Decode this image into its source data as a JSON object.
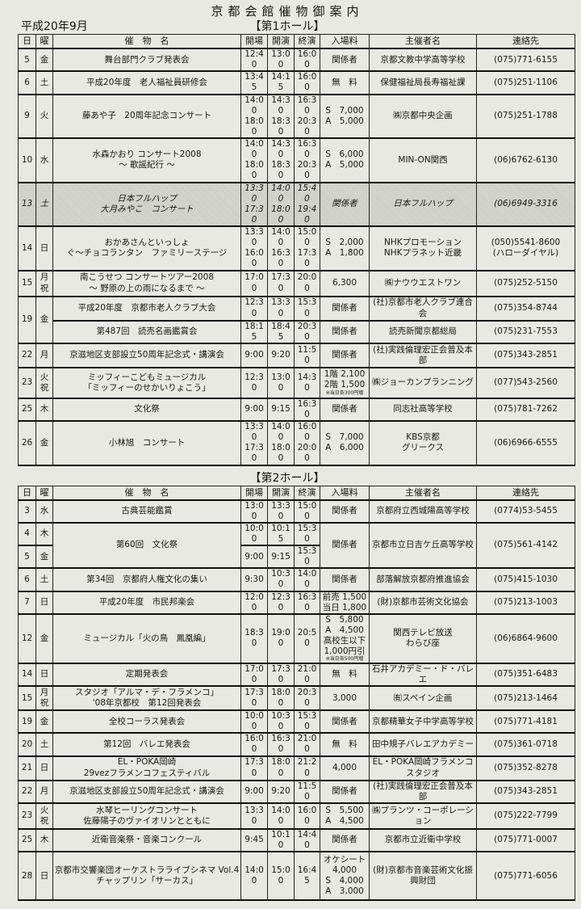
{
  "title": "京都会館催物御案内",
  "date": "平成20年9月",
  "columns": [
    "日",
    "曜",
    "催　物　名",
    "開場",
    "開演",
    "終演",
    "入場料",
    "主催者名",
    "連絡先"
  ],
  "halls": [
    {
      "label": "【第1ホール】",
      "rows": [
        {
          "day": "5",
          "dow": [
            "金"
          ],
          "name": [
            "舞台部門クラブ発表会"
          ],
          "open": [
            "12:40"
          ],
          "start": [
            "13:00"
          ],
          "end": [
            "16:00"
          ],
          "fee": [
            "関係者"
          ],
          "org": [
            "京都文教中学高等学校"
          ],
          "contact": [
            "(075)771-6155"
          ]
        },
        {
          "day": "6",
          "dow": [
            "土"
          ],
          "name": [
            "平成20年度　老人福祉員研修会"
          ],
          "open": [
            "13:45"
          ],
          "start": [
            "14:15"
          ],
          "end": [
            "16:00"
          ],
          "fee": [
            "無　料"
          ],
          "org": [
            "保健福祉局長寿福祉課"
          ],
          "contact": [
            "(075)251-1106"
          ]
        },
        {
          "day": "9",
          "dow": [
            "火"
          ],
          "name": [
            "藤あや子　20周年記念コンサート"
          ],
          "open": [
            "14:00",
            "18:00"
          ],
          "start": [
            "14:30",
            "18:30"
          ],
          "end": [
            "16:30",
            "20:30"
          ],
          "fee": [
            "S　7,000",
            "A　5,000"
          ],
          "org": [
            "㈱京都中央企画"
          ],
          "contact": [
            "(075)251-1788"
          ]
        },
        {
          "day": "10",
          "dow": [
            "水"
          ],
          "name": [
            "水森かおり コンサート2008",
            "～ 歌謡紀行 ～"
          ],
          "open": [
            "14:00",
            "18:00"
          ],
          "start": [
            "14:30",
            "18:30"
          ],
          "end": [
            "16:30",
            "20:30"
          ],
          "fee": [
            "S　6,000",
            "A　5,000"
          ],
          "org": [
            "MIN-ON関西"
          ],
          "contact": [
            "(06)6762-6130"
          ]
        },
        {
          "day": "13",
          "dow": [
            "土"
          ],
          "shaded": true,
          "name": [
            "日本フルハップ",
            "大月みやこ　コンサート"
          ],
          "open": [
            "13:30",
            "17:30"
          ],
          "start": [
            "14:00",
            "18:00"
          ],
          "end": [
            "15:40",
            "19:40"
          ],
          "fee": [
            "関係者"
          ],
          "org": [
            "日本フルハップ"
          ],
          "contact": [
            "(06)6949-3316"
          ]
        },
        {
          "day": "14",
          "dow": [
            "日"
          ],
          "name": [
            "おかあさんといっしょ",
            "ぐ～チョコランタン　ファミリーステージ"
          ],
          "open": [
            "13:30",
            "16:00"
          ],
          "start": [
            "14:00",
            "16:30"
          ],
          "end": [
            "15:00",
            "17:30"
          ],
          "fee": [
            "S　2,000",
            "A　1,800"
          ],
          "org": [
            "NHKプロモーション",
            "NHKプラネット近畿"
          ],
          "contact": [
            "(050)5541-8600",
            "(ハローダイヤル)"
          ]
        },
        {
          "day": "15",
          "dow": [
            "月",
            "祝"
          ],
          "name": [
            "南こうせつ コンサートツアー2008",
            "～ 野原の上の雨になるまで ～"
          ],
          "open": [
            "17:00"
          ],
          "start": [
            "17:30"
          ],
          "end": [
            "20:00"
          ],
          "fee": [
            "6,300"
          ],
          "org": [
            "㈱ナウウエストワン"
          ],
          "contact": [
            "(075)252-5150"
          ]
        },
        {
          "day": "19",
          "dow": [
            "金"
          ],
          "span2": [
            "day",
            "dow"
          ],
          "name": [
            "平成20年度　京都市老人クラブ大会"
          ],
          "open": [
            "12:30"
          ],
          "start": [
            "13:30"
          ],
          "end": [
            "15:30"
          ],
          "fee": [
            "関係者"
          ],
          "org": [
            "(社)京都市老人クラブ連合会"
          ],
          "contact": [
            "(075)354-8744"
          ]
        },
        {
          "name": [
            "第487回　読売名画鑑賞会"
          ],
          "open": [
            "18:15"
          ],
          "start": [
            "18:45"
          ],
          "end": [
            "20:30"
          ],
          "fee": [
            "関係者"
          ],
          "org": [
            "読売新聞京都総局"
          ],
          "contact": [
            "(075)231-7553"
          ]
        },
        {
          "day": "22",
          "dow": [
            "月"
          ],
          "name": [
            "京滋地区支部設立50周年記念式・講演会"
          ],
          "open": [
            "9:00"
          ],
          "start": [
            "9:20"
          ],
          "end": [
            "11:50"
          ],
          "fee": [
            "関係者"
          ],
          "org": [
            "(社)実践倫理宏正会普及本部"
          ],
          "contact": [
            "(075)343-2851"
          ]
        },
        {
          "day": "23",
          "dow": [
            "火",
            "祝"
          ],
          "name": [
            "ミッフィーこどもミュージカル",
            "「ミッフィーのせかいりょこう」"
          ],
          "open": [
            "12:30"
          ],
          "start": [
            "13:00"
          ],
          "end": [
            "14:30"
          ],
          "fee": [
            "1階 2,100",
            "2階 1,500"
          ],
          "fee_note": "※当日各300円増",
          "org": [
            "㈱ジョーカンプランニング"
          ],
          "contact": [
            "(077)543-2560"
          ]
        },
        {
          "day": "25",
          "dow": [
            "木"
          ],
          "name": [
            "文化祭"
          ],
          "open": [
            "9:00"
          ],
          "start": [
            "9:15"
          ],
          "end": [
            "16:30"
          ],
          "fee": [
            "関係者"
          ],
          "org": [
            "同志社高等学校"
          ],
          "contact": [
            "(075)781-7262"
          ]
        },
        {
          "day": "26",
          "dow": [
            "金"
          ],
          "name": [
            "小林旭　コンサート"
          ],
          "open": [
            "13:30",
            "17:30"
          ],
          "start": [
            "14:00",
            "18:00"
          ],
          "end": [
            "16:00",
            "20:00"
          ],
          "fee": [
            "S　7,000",
            "A　6,000"
          ],
          "org": [
            "KBS京都",
            "グリークス"
          ],
          "contact": [
            "(06)6966-6555"
          ]
        }
      ]
    },
    {
      "label": "【第2ホール】",
      "rows": [
        {
          "day": "3",
          "dow": [
            "水"
          ],
          "name": [
            "古典芸能鑑賞"
          ],
          "open": [
            "13:00"
          ],
          "start": [
            "13:30"
          ],
          "end": [
            "15:00"
          ],
          "fee": [
            "関係者"
          ],
          "org": [
            "京都府立西城陽高等学校"
          ],
          "contact": [
            "(0774)53-5455"
          ]
        },
        {
          "day": "4",
          "dow": [
            "木"
          ],
          "span2": [
            "name",
            "fee",
            "org",
            "contact"
          ],
          "name": [
            "第60回　文化祭"
          ],
          "open": [
            "10:00"
          ],
          "start": [
            "10:15"
          ],
          "end": [
            "15:30"
          ],
          "fee": [
            "関係者"
          ],
          "org": [
            "京都市立日吉ケ丘高等学校"
          ],
          "contact": [
            "(075)561-4142"
          ]
        },
        {
          "day": "5",
          "dow": [
            "金"
          ],
          "open": [
            "9:00"
          ],
          "start": [
            "9:15"
          ],
          "end": [
            "15:30"
          ]
        },
        {
          "day": "6",
          "dow": [
            "土"
          ],
          "name": [
            "第34回　京都府人権文化の集い"
          ],
          "open": [
            "9:30"
          ],
          "start": [
            "10:30"
          ],
          "end": [
            "14:00"
          ],
          "fee": [
            "関係者"
          ],
          "org": [
            "部落解放京都府推進協会"
          ],
          "contact": [
            "(075)415-1030"
          ]
        },
        {
          "day": "7",
          "dow": [
            "日"
          ],
          "name": [
            "平成20年度　市民邦楽会"
          ],
          "open": [
            "12:00"
          ],
          "start": [
            "12:30"
          ],
          "end": [
            "16:30"
          ],
          "fee": [
            "前売 1,500",
            "当日 1,800"
          ],
          "org": [
            "(財)京都市芸術文化協会"
          ],
          "contact": [
            "(075)213-1003"
          ]
        },
        {
          "day": "12",
          "dow": [
            "金"
          ],
          "name": [
            "ミュージカル「火の鳥　鳳凰編」"
          ],
          "open": [
            "18:30"
          ],
          "start": [
            "19:00"
          ],
          "end": [
            "20:50"
          ],
          "fee": [
            "S　5,800",
            "A　4,500",
            "高校生以下",
            "1,000円引"
          ],
          "fee_note": "※当日各500円増",
          "org": [
            "関西テレビ放送",
            "わらび座"
          ],
          "contact": [
            "(06)6864-9600"
          ]
        },
        {
          "day": "14",
          "dow": [
            "日"
          ],
          "name": [
            "定期発表会"
          ],
          "open": [
            "17:00"
          ],
          "start": [
            "17:30"
          ],
          "end": [
            "21:00"
          ],
          "fee": [
            "無　料"
          ],
          "org": [
            "石井アカデミー・ド・バレエ"
          ],
          "contact": [
            "(075)351-6483"
          ]
        },
        {
          "day": "15",
          "dow": [
            "月",
            "祝"
          ],
          "name": [
            "スタジオ「アルマ・デ・フラメンコ」",
            "'08年京都校　第12回発表会"
          ],
          "open": [
            "17:30"
          ],
          "start": [
            "18:00"
          ],
          "end": [
            "20:30"
          ],
          "fee": [
            "3,000"
          ],
          "org": [
            "㈲スペイン企画"
          ],
          "contact": [
            "(075)213-1464"
          ]
        },
        {
          "day": "19",
          "dow": [
            "金"
          ],
          "name": [
            "全校コーラス発表会"
          ],
          "open": [
            "10:00"
          ],
          "start": [
            "10:30"
          ],
          "end": [
            "15:30"
          ],
          "fee": [
            "関係者"
          ],
          "org": [
            "京都精華女子中学高等学校"
          ],
          "contact": [
            "(075)771-4181"
          ]
        },
        {
          "day": "20",
          "dow": [
            "土"
          ],
          "name": [
            "第12回　バレエ発表会"
          ],
          "open": [
            "16:00"
          ],
          "start": [
            "16:30"
          ],
          "end": [
            "21:00"
          ],
          "fee": [
            "無　料"
          ],
          "org": [
            "田中規子バレエアカデミー"
          ],
          "contact": [
            "(075)361-0718"
          ]
        },
        {
          "day": "21",
          "dow": [
            "日"
          ],
          "name": [
            "EL・POKA岡崎",
            "29vezフラメンコフェスティバル"
          ],
          "open": [
            "17:30"
          ],
          "start": [
            "18:00"
          ],
          "end": [
            "21:20"
          ],
          "fee": [
            "4,000"
          ],
          "org": [
            "EL・POKA岡崎フラメンコスタジオ"
          ],
          "contact": [
            "(075)352-8278"
          ]
        },
        {
          "day": "22",
          "dow": [
            "月"
          ],
          "name": [
            "京滋地区支部設立50周年記念式・講演会"
          ],
          "open": [
            "9:00"
          ],
          "start": [
            "9:20"
          ],
          "end": [
            "11:50"
          ],
          "fee": [
            "関係者"
          ],
          "org": [
            "(社)実践倫理宏正会普及本部"
          ],
          "contact": [
            "(075)343-2851"
          ]
        },
        {
          "day": "23",
          "dow": [
            "火",
            "祝"
          ],
          "name": [
            "水琴ヒーリングコンサート",
            "佐藤陽子のヴァイオリンとともに"
          ],
          "open": [
            "13:30"
          ],
          "start": [
            "14:00"
          ],
          "end": [
            "16:00"
          ],
          "fee": [
            "S　5,500",
            "A　4,500"
          ],
          "org": [
            "㈱プランツ・コーポレーション"
          ],
          "contact": [
            "(075)222-7799"
          ]
        },
        {
          "day": "25",
          "dow": [
            "木"
          ],
          "name": [
            "近衛音楽祭・音楽コンクール"
          ],
          "open": [
            "9:45"
          ],
          "start": [
            "10:10"
          ],
          "end": [
            "14:40"
          ],
          "fee": [
            "関係者"
          ],
          "org": [
            "京都市立近衛中学校"
          ],
          "contact": [
            "(075)771-0007"
          ]
        },
        {
          "day": "28",
          "dow": [
            "日"
          ],
          "name": [
            "京都市交響楽団オーケストラライブシネマ Vol.4",
            "チャップリン「サーカス」"
          ],
          "open": [
            "14:00"
          ],
          "start": [
            "15:00"
          ],
          "end": [
            "16:45"
          ],
          "fee": [
            "オケシート",
            "4,000",
            "S　4,000",
            "A　3,000"
          ],
          "org": [
            "(財)京都市音楽芸術文化振興財団"
          ],
          "contact": [
            "(075)771-6056"
          ]
        }
      ]
    }
  ]
}
